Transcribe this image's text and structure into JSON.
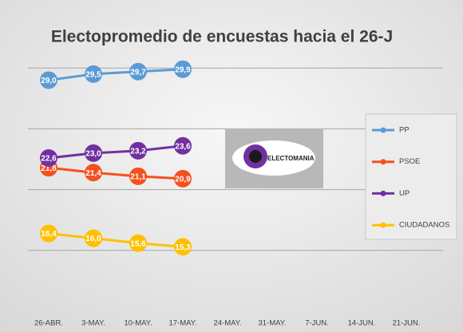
{
  "chart_data": {
    "type": "line",
    "title": "Electopromedio de encuestas hacia el 26-J",
    "annotation": "ELECTOMANIA",
    "categories": [
      "26-ABR.",
      "3-MAY.",
      "10-MAY.",
      "17-MAY.",
      "24-MAY.",
      "31-MAY.",
      "7-JUN.",
      "14-JUN.",
      "21-JUN."
    ],
    "series": [
      {
        "name": "PP",
        "color": "#5b9bd5",
        "values": [
          29.0,
          29.5,
          29.7,
          29.9,
          null,
          null,
          null,
          null,
          null
        ],
        "value_labels": [
          "29,0",
          "29,5",
          "29,7",
          "29,9",
          null,
          null,
          null,
          null,
          null
        ]
      },
      {
        "name": "PSOE",
        "color": "#f4511e",
        "values": [
          21.8,
          21.4,
          21.1,
          20.9,
          null,
          null,
          null,
          null,
          null
        ],
        "value_labels": [
          "21,8",
          "21,4",
          "21,1",
          "20,9",
          null,
          null,
          null,
          null,
          null
        ]
      },
      {
        "name": "UP",
        "color": "#7030a0",
        "values": [
          22.6,
          23.0,
          23.2,
          23.6,
          null,
          null,
          null,
          null,
          null
        ],
        "value_labels": [
          "22,6",
          "23,0",
          "23,2",
          "23,6",
          null,
          null,
          null,
          null,
          null
        ]
      },
      {
        "name": "CIUDADANOS",
        "color": "#ffc000",
        "values": [
          16.4,
          16.0,
          15.6,
          15.3,
          null,
          null,
          null,
          null,
          null
        ],
        "value_labels": [
          "16,4",
          "16,0",
          "15,6",
          "15,3",
          null,
          null,
          null,
          null,
          null
        ]
      }
    ],
    "ylim": [
      10,
      35
    ],
    "yticks": [
      15,
      20,
      25,
      30
    ],
    "grid": true,
    "legend": "right"
  }
}
